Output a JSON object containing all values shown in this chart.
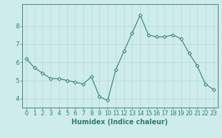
{
  "x": [
    0,
    1,
    2,
    3,
    4,
    5,
    6,
    7,
    8,
    9,
    10,
    11,
    12,
    13,
    14,
    15,
    16,
    17,
    18,
    19,
    20,
    21,
    22,
    23
  ],
  "y": [
    6.2,
    5.7,
    5.4,
    5.1,
    5.1,
    5.0,
    4.9,
    4.8,
    5.2,
    4.1,
    3.9,
    5.6,
    6.6,
    7.6,
    8.6,
    7.5,
    7.4,
    7.4,
    7.5,
    7.3,
    6.5,
    5.8,
    4.8,
    4.5
  ],
  "line_color": "#2e7d6b",
  "marker": "D",
  "marker_size": 2.5,
  "bg_color": "#ceecea",
  "grid_color": "#b5d9d6",
  "xlabel": "Humidex (Indice chaleur)",
  "xlabel_fontsize": 7,
  "tick_fontsize": 6,
  "ylim": [
    3.5,
    9.2
  ],
  "xlim": [
    -0.5,
    23.5
  ],
  "yticks": [
    4,
    5,
    6,
    7,
    8
  ],
  "spine_color": "#4a7a72"
}
